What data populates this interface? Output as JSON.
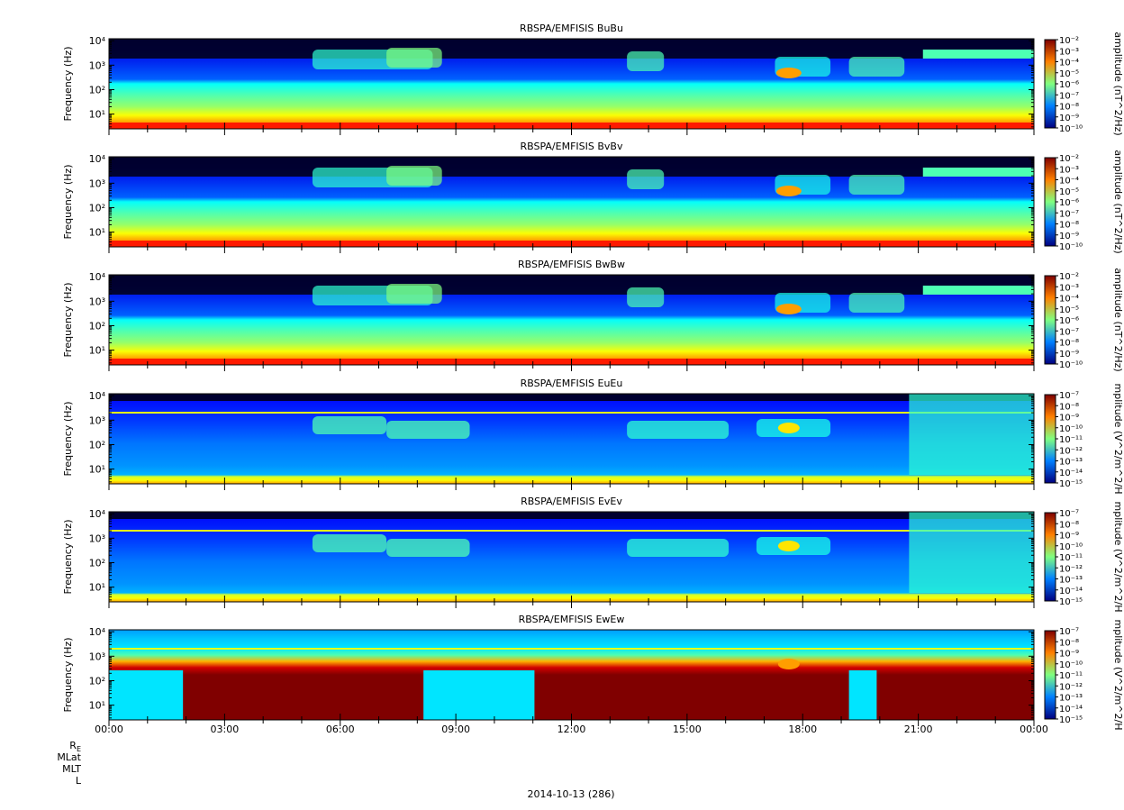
{
  "chart_data": [
    {
      "type": "heatmap",
      "title": "RBSPA/EMFISIS  BuBu",
      "ylabel": "Frequency (Hz)",
      "colorbar_label": "amplitude (nT^2/Hz)",
      "ylim": [
        2.5,
        12000
      ],
      "y_scale": "log",
      "y_ticks": [
        "10¹",
        "10²",
        "10³",
        "10⁴"
      ],
      "colorbar_ticks": [
        "10⁻²",
        "10⁻³",
        "10⁻⁴",
        "10⁻⁵",
        "10⁻⁶",
        "10⁻⁷",
        "10⁻⁸",
        "10⁻⁹",
        "10⁻¹⁰"
      ],
      "colorbar_range": [
        -10,
        -2
      ],
      "kind": "B"
    },
    {
      "type": "heatmap",
      "title": "RBSPA/EMFISIS  BvBv",
      "ylabel": "Frequency (Hz)",
      "colorbar_label": "amplitude (nT^2/Hz)",
      "ylim": [
        2.5,
        12000
      ],
      "y_scale": "log",
      "y_ticks": [
        "10¹",
        "10²",
        "10³",
        "10⁴"
      ],
      "colorbar_ticks": [
        "10⁻²",
        "10⁻³",
        "10⁻⁴",
        "10⁻⁵",
        "10⁻⁶",
        "10⁻⁷",
        "10⁻⁸",
        "10⁻⁹",
        "10⁻¹⁰"
      ],
      "colorbar_range": [
        -10,
        -2
      ],
      "kind": "B"
    },
    {
      "type": "heatmap",
      "title": "RBSPA/EMFISIS  BwBw",
      "ylabel": "Frequency (Hz)",
      "colorbar_label": "amplitude (nT^2/Hz)",
      "ylim": [
        2.5,
        12000
      ],
      "y_scale": "log",
      "y_ticks": [
        "10¹",
        "10²",
        "10³",
        "10⁴"
      ],
      "colorbar_ticks": [
        "10⁻²",
        "10⁻³",
        "10⁻⁴",
        "10⁻⁵",
        "10⁻⁶",
        "10⁻⁷",
        "10⁻⁸",
        "10⁻⁹",
        "10⁻¹⁰"
      ],
      "colorbar_range": [
        -10,
        -2
      ],
      "kind": "B"
    },
    {
      "type": "heatmap",
      "title": "RBSPA/EMFISIS  EuEu",
      "ylabel": "Frequency (Hz)",
      "colorbar_label": "mplitude (V^2/m^2/H",
      "ylim": [
        2.5,
        12000
      ],
      "y_scale": "log",
      "y_ticks": [
        "10¹",
        "10²",
        "10³",
        "10⁴"
      ],
      "colorbar_ticks": [
        "10⁻⁷",
        "10⁻⁸",
        "10⁻⁹",
        "10⁻¹⁰",
        "10⁻¹¹",
        "10⁻¹²",
        "10⁻¹³",
        "10⁻¹⁴",
        "10⁻¹⁵"
      ],
      "colorbar_range": [
        -15,
        -7
      ],
      "kind": "E"
    },
    {
      "type": "heatmap",
      "title": "RBSPA/EMFISIS  EvEv",
      "ylabel": "Frequency (Hz)",
      "colorbar_label": "mplitude (V^2/m^2/H",
      "ylim": [
        2.5,
        12000
      ],
      "y_scale": "log",
      "y_ticks": [
        "10¹",
        "10²",
        "10³",
        "10⁴"
      ],
      "colorbar_ticks": [
        "10⁻⁷",
        "10⁻⁸",
        "10⁻⁹",
        "10⁻¹⁰",
        "10⁻¹¹",
        "10⁻¹²",
        "10⁻¹³",
        "10⁻¹⁴",
        "10⁻¹⁵"
      ],
      "colorbar_range": [
        -15,
        -7
      ],
      "kind": "E"
    },
    {
      "type": "heatmap",
      "title": "RBSPA/EMFISIS  EwEw",
      "ylabel": "Frequency (Hz)",
      "colorbar_label": "mplitude (V^2/m^2/H",
      "ylim": [
        2.5,
        12000
      ],
      "y_scale": "log",
      "y_ticks": [
        "10¹",
        "10²",
        "10³",
        "10⁴"
      ],
      "colorbar_ticks": [
        "10⁻⁷",
        "10⁻⁸",
        "10⁻⁹",
        "10⁻¹⁰",
        "10⁻¹¹",
        "10⁻¹²",
        "10⁻¹³",
        "10⁻¹⁴",
        "10⁻¹⁵"
      ],
      "colorbar_range": [
        -15,
        -7
      ],
      "kind": "Ew"
    }
  ],
  "x_axis": {
    "ticks": [
      "00:00",
      "03:00",
      "06:00",
      "09:00",
      "12:00",
      "15:00",
      "18:00",
      "21:00",
      "00:00"
    ],
    "range_hours": [
      0,
      24
    ]
  },
  "info_labels": [
    "R_E",
    "MLat",
    "MLT",
    "L"
  ],
  "date_label": "2014-10-13 (286)"
}
